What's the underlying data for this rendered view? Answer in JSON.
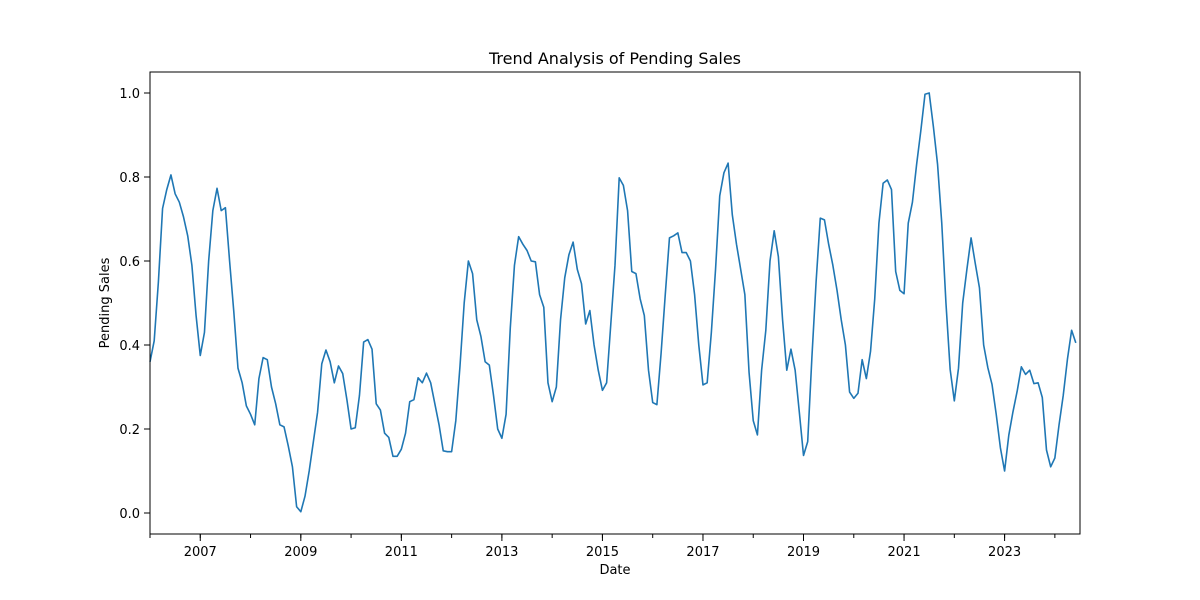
{
  "chart_data": {
    "type": "line",
    "title": "Trend Analysis of Pending Sales",
    "xlabel": "Date",
    "ylabel": "Pending Sales",
    "xlim": [
      "2006-01",
      "2024-07"
    ],
    "ylim": [
      -0.05,
      1.05
    ],
    "x_ticks": [
      "2007",
      "2009",
      "2011",
      "2013",
      "2015",
      "2017",
      "2019",
      "2021",
      "2023"
    ],
    "y_ticks": [
      "0.0",
      "0.2",
      "0.4",
      "0.6",
      "0.8",
      "1.0"
    ],
    "grid": false,
    "color": "#1f77b4",
    "series": [
      {
        "start": "2006-01",
        "frequency": "monthly",
        "values": [
          0.36,
          0.41,
          0.55,
          0.725,
          0.77,
          0.805,
          0.76,
          0.74,
          0.705,
          0.66,
          0.59,
          0.47,
          0.375,
          0.43,
          0.6,
          0.72,
          0.773,
          0.72,
          0.727,
          0.6,
          0.48,
          0.345,
          0.31,
          0.255,
          0.235,
          0.21,
          0.32,
          0.37,
          0.365,
          0.3,
          0.26,
          0.21,
          0.205,
          0.16,
          0.11,
          0.015,
          0.003,
          0.04,
          0.1,
          0.17,
          0.24,
          0.355,
          0.388,
          0.36,
          0.31,
          0.35,
          0.332,
          0.27,
          0.2,
          0.203,
          0.28,
          0.407,
          0.413,
          0.39,
          0.26,
          0.245,
          0.19,
          0.18,
          0.135,
          0.135,
          0.152,
          0.19,
          0.265,
          0.27,
          0.322,
          0.31,
          0.333,
          0.31,
          0.26,
          0.21,
          0.148,
          0.146,
          0.146,
          0.22,
          0.35,
          0.5,
          0.6,
          0.57,
          0.46,
          0.42,
          0.36,
          0.352,
          0.28,
          0.2,
          0.178,
          0.235,
          0.44,
          0.59,
          0.658,
          0.64,
          0.625,
          0.6,
          0.598,
          0.52,
          0.49,
          0.31,
          0.265,
          0.3,
          0.46,
          0.56,
          0.615,
          0.645,
          0.58,
          0.546,
          0.45,
          0.482,
          0.4,
          0.34,
          0.292,
          0.31,
          0.45,
          0.59,
          0.798,
          0.78,
          0.72,
          0.575,
          0.57,
          0.51,
          0.47,
          0.34,
          0.263,
          0.258,
          0.38,
          0.52,
          0.655,
          0.66,
          0.667,
          0.62,
          0.62,
          0.6,
          0.52,
          0.4,
          0.305,
          0.31,
          0.43,
          0.58,
          0.755,
          0.81,
          0.833,
          0.71,
          0.64,
          0.58,
          0.52,
          0.335,
          0.22,
          0.186,
          0.34,
          0.435,
          0.6,
          0.672,
          0.61,
          0.46,
          0.34,
          0.39,
          0.34,
          0.24,
          0.137,
          0.17,
          0.37,
          0.55,
          0.702,
          0.698,
          0.64,
          0.59,
          0.53,
          0.46,
          0.4,
          0.288,
          0.273,
          0.285,
          0.365,
          0.32,
          0.385,
          0.51,
          0.69,
          0.785,
          0.793,
          0.77,
          0.575,
          0.53,
          0.522,
          0.69,
          0.74,
          0.83,
          0.91,
          0.997,
          1.0,
          0.92,
          0.83,
          0.69,
          0.5,
          0.342,
          0.267,
          0.345,
          0.5,
          0.58,
          0.655,
          0.594,
          0.536,
          0.4,
          0.346,
          0.306,
          0.235,
          0.155,
          0.1,
          0.185,
          0.241,
          0.29,
          0.348,
          0.33,
          0.34,
          0.308,
          0.31,
          0.275,
          0.15,
          0.11,
          0.131,
          0.21,
          0.28,
          0.366,
          0.435,
          0.405
        ]
      }
    ]
  }
}
